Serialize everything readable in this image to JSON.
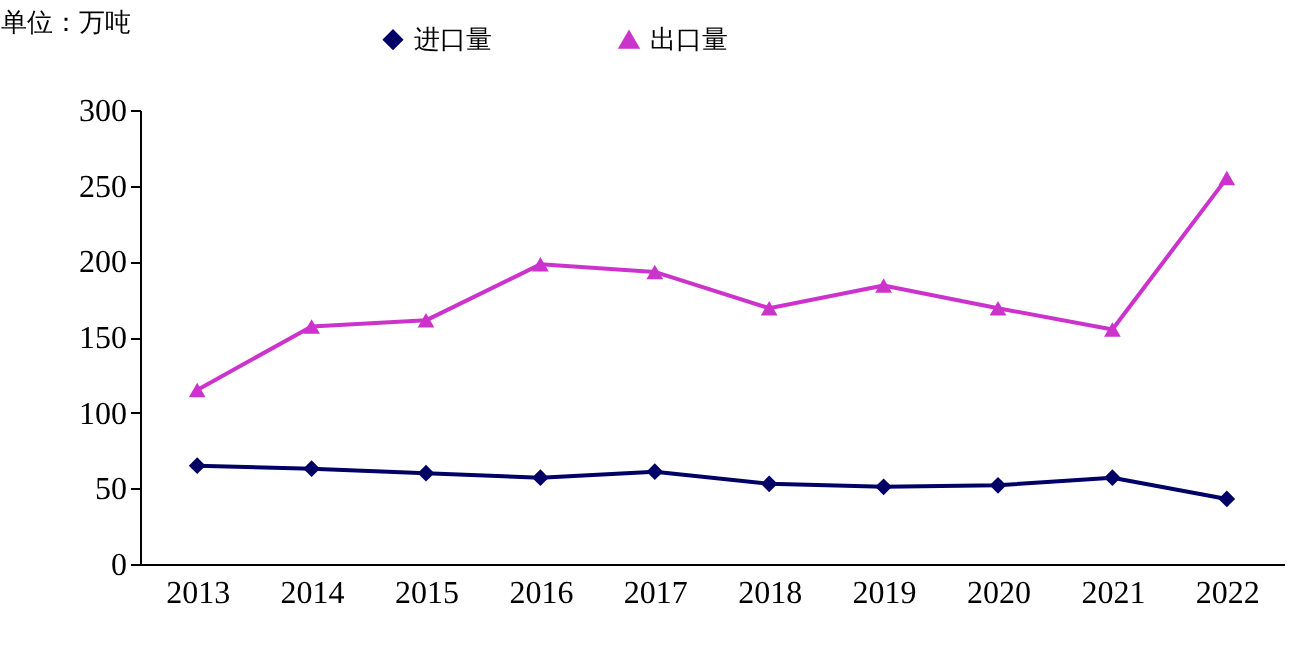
{
  "chart_data": {
    "type": "line",
    "ylabel": "单位：万吨",
    "categories": [
      "2013",
      "2014",
      "2015",
      "2016",
      "2017",
      "2018",
      "2019",
      "2020",
      "2021",
      "2022"
    ],
    "series": [
      {
        "name": "进口量",
        "color": "#000066",
        "marker": "diamond",
        "values": [
          65,
          63,
          60,
          57,
          61,
          53,
          51,
          52,
          57,
          43
        ]
      },
      {
        "name": "出口量",
        "color": "#cc33cc",
        "marker": "triangle",
        "values": [
          115,
          157,
          161,
          198,
          193,
          169,
          184,
          169,
          155,
          255
        ]
      }
    ],
    "ylim": [
      0,
      300
    ],
    "yticks": [
      0,
      50,
      100,
      150,
      200,
      250,
      300
    ],
    "grid": false,
    "legend": "top",
    "line_style": "solid"
  }
}
